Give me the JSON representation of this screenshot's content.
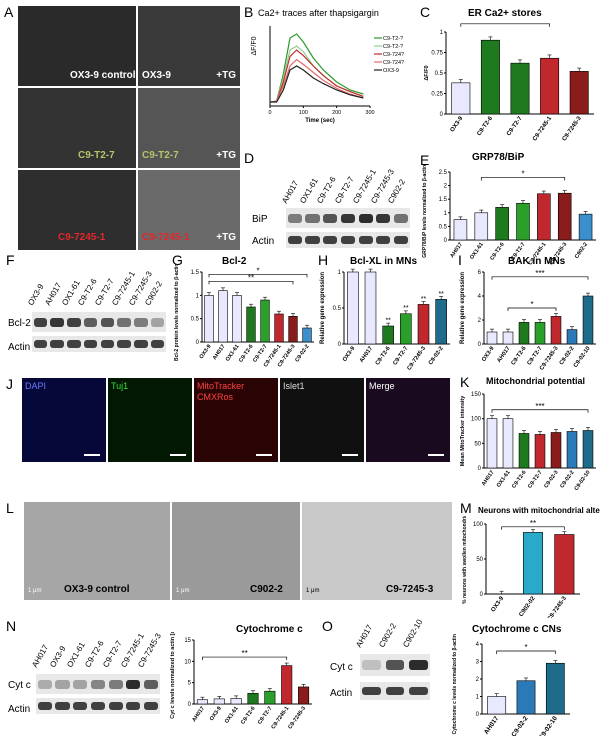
{
  "panels": {
    "A": {
      "letter": "A",
      "labels": [
        "OX3-9 control",
        "OX3-9",
        "+TG",
        "C9-T2-7",
        "C9-T2-7",
        "+TG",
        "C9-7245-1",
        "C9-7245-1",
        "+TG"
      ]
    },
    "B": {
      "letter": "B",
      "title": "Ca2+ traces after thapsigargin",
      "ylabel": "ΔF/F0",
      "xlabel": "Time (sec)",
      "legend": [
        "C9-T2-?",
        "C9-T2-?",
        "C9-724?",
        "C9-724?",
        "OX3-9"
      ]
    },
    "C": {
      "letter": "C",
      "title": "ER Ca2+ stores"
    },
    "D": {
      "letter": "D",
      "lanes": [
        "AH017",
        "OX1-61",
        "C9-T2-6",
        "C9-T2-7",
        "C9-7245-1",
        "C9-7245-3",
        "C902-2"
      ],
      "rows": [
        "BiP",
        "Actin"
      ]
    },
    "E": {
      "letter": "E",
      "title": "GRP78/BiP"
    },
    "F": {
      "letter": "F",
      "lanes": [
        "OX3-9",
        "AH017",
        "OX1-61",
        "C9-T2-6",
        "C9-T2-7",
        "C9-7245-1",
        "C9-7245-3",
        "C902-2"
      ],
      "rows": [
        "Bcl-2",
        "Actin"
      ]
    },
    "G": {
      "letter": "G",
      "title": "Bcl-2"
    },
    "H": {
      "letter": "H",
      "title": "Bcl-XL in MNs"
    },
    "I": {
      "letter": "I",
      "title": "BAK in MNs"
    },
    "J": {
      "letter": "J",
      "channels": [
        "DAPI",
        "Tuj1",
        "MitoTracker CMXRos",
        "Islet1",
        "Merge"
      ]
    },
    "K": {
      "letter": "K",
      "title": "Mitochondrial potential"
    },
    "L": {
      "letter": "L",
      "labels": [
        "OX3-9 control",
        "C902-2",
        "C9-7245-3"
      ],
      "scale": "1 μm"
    },
    "M": {
      "letter": "M",
      "title": "Neurons with mitochondrial alterations"
    },
    "N": {
      "letter": "N",
      "lanes": [
        "AH017",
        "OX3-9",
        "OX1-61",
        "C9-T2-6",
        "C9-T2-7",
        "C9-7245-1",
        "C9-7245-3"
      ],
      "rows": [
        "Cyt c",
        "Actin"
      ]
    },
    "N2": {
      "title": "Cytochrome c"
    },
    "O": {
      "letter": "O",
      "lanes": [
        "AH017",
        "C902-2",
        "C902-10"
      ],
      "rows": [
        "Cyt c",
        "Actin"
      ],
      "title": "Cytochrome c CNs"
    }
  },
  "chart_data": [
    {
      "id": "B",
      "type": "line",
      "title": "Ca2+ traces after thapsigargin",
      "xlabel": "Time (sec)",
      "ylabel": "ΔF/F0",
      "xlim": [
        0,
        300
      ],
      "xticks": [
        0,
        100,
        200,
        300
      ],
      "series": [
        {
          "name": "C9-T2-?",
          "color": "#2a9a2a",
          "x": [
            0,
            20,
            40,
            60,
            80,
            100,
            130,
            160,
            200,
            240,
            280
          ],
          "y": [
            0.05,
            0.06,
            0.4,
            0.85,
            0.9,
            0.8,
            0.6,
            0.45,
            0.3,
            0.2,
            0.15
          ]
        },
        {
          "name": "C9-T2-?",
          "color": "#8fd08f",
          "x": [
            0,
            20,
            40,
            60,
            80,
            100,
            130,
            160,
            200,
            240,
            280
          ],
          "y": [
            0.05,
            0.06,
            0.35,
            0.7,
            0.75,
            0.68,
            0.5,
            0.38,
            0.25,
            0.18,
            0.12
          ]
        },
        {
          "name": "C9-724?",
          "color": "#c0282d",
          "x": [
            0,
            20,
            40,
            60,
            80,
            100,
            130,
            160,
            200,
            240,
            280
          ],
          "y": [
            0.05,
            0.06,
            0.3,
            0.62,
            0.7,
            0.63,
            0.5,
            0.38,
            0.25,
            0.18,
            0.12
          ]
        },
        {
          "name": "C9-724?",
          "color": "#e06a6a",
          "x": [
            0,
            20,
            40,
            60,
            80,
            100,
            130,
            160,
            200,
            240,
            280
          ],
          "y": [
            0.05,
            0.06,
            0.25,
            0.5,
            0.58,
            0.52,
            0.42,
            0.32,
            0.22,
            0.15,
            0.1
          ]
        },
        {
          "name": "OX3-9",
          "color": "#222222",
          "x": [
            0,
            20,
            40,
            60,
            80,
            100,
            130,
            160,
            200,
            240,
            280
          ],
          "y": [
            0.05,
            0.05,
            0.2,
            0.45,
            0.5,
            0.45,
            0.35,
            0.28,
            0.2,
            0.14,
            0.1
          ]
        }
      ]
    },
    {
      "id": "C",
      "type": "bar",
      "title": "ER Ca2+ stores",
      "ylabel": "ΔF/F0",
      "ylim": [
        0,
        1.0
      ],
      "yticks": [
        0,
        0.25,
        0.5,
        0.75,
        1.0
      ],
      "categories": [
        "OX3-9",
        "C9-T2-6",
        "C9-T2-7",
        "C9-7245-1",
        "C9-7245-3"
      ],
      "values": [
        0.38,
        0.9,
        0.62,
        0.68,
        0.52
      ],
      "colors": [
        "#e8e8ff",
        "#1f7a1f",
        "#1f7a1f",
        "#c0282d",
        "#8a1c1c"
      ],
      "sig": [
        "***",
        "*"
      ]
    },
    {
      "id": "E",
      "type": "bar",
      "title": "GRP78/BiP",
      "ylabel": "GRP78/BiP levels normalized to β-actin [au]",
      "ylim": [
        0,
        2.5
      ],
      "yticks": [
        0,
        0.5,
        1.0,
        1.5,
        2.0,
        2.5
      ],
      "categories": [
        "AH017",
        "OX1-61",
        "C9-T2-6",
        "C9-T2-7",
        "C9-7245-1",
        "C9-7245-3",
        "C902-2"
      ],
      "values": [
        0.75,
        1.0,
        1.2,
        1.35,
        1.7,
        1.72,
        0.95
      ],
      "colors": [
        "#e8e8ff",
        "#e8e8ff",
        "#1f7a1f",
        "#2aa02a",
        "#c0282d",
        "#8a1c1c",
        "#3a8fcc"
      ],
      "sig": [
        "*"
      ]
    },
    {
      "id": "G",
      "type": "bar",
      "title": "Bcl-2",
      "ylabel": "Bcl-2 protein levels normalized to β-actin [au]",
      "ylim": [
        0,
        1.5
      ],
      "yticks": [
        0,
        0.5,
        1.0,
        1.5
      ],
      "categories": [
        "OX3-9",
        "AH017",
        "OX1-61",
        "C9-T2-6",
        "C9-T2-7",
        "C9-7245-1",
        "C9-7245-3",
        "C9-02-2"
      ],
      "values": [
        1.0,
        1.1,
        1.0,
        0.75,
        0.9,
        0.6,
        0.55,
        0.3
      ],
      "colors": [
        "#e8e8ff",
        "#e8e8ff",
        "#e8e8ff",
        "#1f7a1f",
        "#2aa02a",
        "#c0282d",
        "#8a1c1c",
        "#3a8fcc"
      ],
      "sig": [
        "**",
        "*"
      ]
    },
    {
      "id": "H",
      "type": "bar",
      "title": "Bcl-XL in MNs",
      "ylabel": "Relative gene expression",
      "ylim": [
        0,
        1.0
      ],
      "yticks": [
        0,
        0.5,
        1.0
      ],
      "categories": [
        "OX3-9",
        "AH017",
        "C9-T2-6",
        "C9-T2-7",
        "C9-7245-3",
        "C9-02-2"
      ],
      "values": [
        1.0,
        1.0,
        0.25,
        0.42,
        0.55,
        0.62
      ],
      "colors": [
        "#e8e8ff",
        "#e8e8ff",
        "#1f7a1f",
        "#2aa02a",
        "#c0282d",
        "#1e6b8a"
      ],
      "sig": [
        "**",
        "**",
        "**",
        "**"
      ]
    },
    {
      "id": "I",
      "type": "bar",
      "title": "BAK in MNs",
      "ylabel": "Relative gene expression",
      "ylim": [
        0,
        6
      ],
      "yticks": [
        0,
        2,
        4,
        6
      ],
      "categories": [
        "OX3-9",
        "AH017",
        "C9-T2-6",
        "C9-T2-7",
        "C9-7245-3",
        "C9-02-2",
        "C9-02-10"
      ],
      "values": [
        1.0,
        1.0,
        1.8,
        1.8,
        2.3,
        1.2,
        4.0
      ],
      "colors": [
        "#e8e8ff",
        "#e8e8ff",
        "#1f7a1f",
        "#2aa02a",
        "#c0282d",
        "#2a7ab8",
        "#1e6b8a"
      ],
      "sig": [
        "*",
        "***"
      ]
    },
    {
      "id": "K",
      "type": "bar",
      "title": "Mitochondrial potential",
      "ylabel": "Mean MitoTracker intensity",
      "ylim": [
        0,
        150
      ],
      "yticks": [
        0,
        50,
        100,
        150
      ],
      "categories": [
        "AH017",
        "OX1-61",
        "C9-T2-6",
        "C9-T2-7",
        "C9-02-3",
        "C9-02-2",
        "C9-02-10"
      ],
      "values": [
        100,
        100,
        70,
        68,
        72,
        74,
        76
      ],
      "colors": [
        "#e8e8ff",
        "#e8e8ff",
        "#1f7a1f",
        "#c0282d",
        "#8a1c1c",
        "#2a7ab8",
        "#1e6b8a"
      ],
      "sig": [
        "***"
      ]
    },
    {
      "id": "M",
      "type": "bar",
      "title": "Neurons with mitochondrial alterations",
      "ylabel": "% neurons with swollen mitochondria",
      "ylim": [
        0,
        100
      ],
      "yticks": [
        0,
        50,
        100
      ],
      "categories": [
        "OX3-9",
        "C902-02",
        "C9-7245-3"
      ],
      "values": [
        0,
        88,
        85
      ],
      "colors": [
        "#e8e8ff",
        "#2aaac8",
        "#c0282d"
      ],
      "sig": [
        "**"
      ]
    },
    {
      "id": "N",
      "type": "bar",
      "title": "Cytochrome c",
      "ylabel": "Cyt c levels normalized to actin [au]",
      "ylim": [
        0,
        15
      ],
      "yticks": [
        0,
        5,
        10,
        15
      ],
      "categories": [
        "AH017",
        "OX3-9",
        "OX1-61",
        "C9-T2-6",
        "C9-T2-7",
        "C9-7245-1",
        "C9-7245-3"
      ],
      "values": [
        1.0,
        1.2,
        1.3,
        2.5,
        3.0,
        9.0,
        4.0
      ],
      "colors": [
        "#e8e8ff",
        "#e8e8ff",
        "#e8e8ff",
        "#1f7a1f",
        "#2aa02a",
        "#c0282d",
        "#8a1c1c"
      ],
      "sig": [
        "**"
      ]
    },
    {
      "id": "O",
      "type": "bar",
      "title": "Cytochrome c CNs",
      "ylabel": "Cytochrome c levels normalized to β-actin [au]",
      "ylim": [
        0,
        4
      ],
      "yticks": [
        0,
        1,
        2,
        3,
        4
      ],
      "categories": [
        "AH017",
        "C9-02-2",
        "C9-02-10"
      ],
      "values": [
        1.0,
        1.9,
        2.9
      ],
      "colors": [
        "#e8e8ff",
        "#2a7ab8",
        "#1e6b8a"
      ],
      "sig": [
        "*"
      ]
    }
  ]
}
